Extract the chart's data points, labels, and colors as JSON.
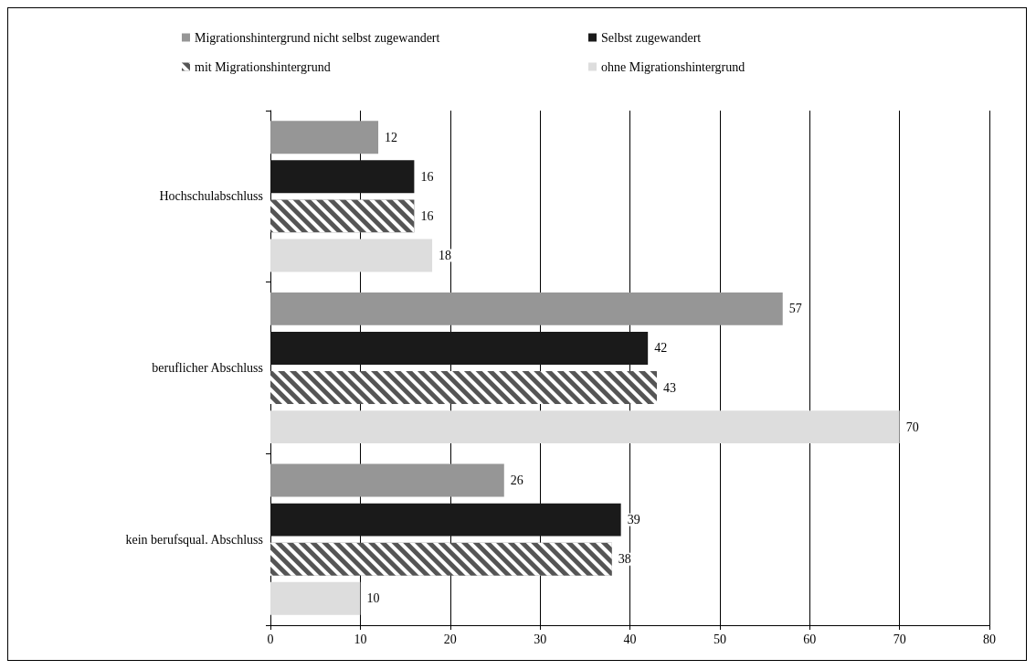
{
  "chart_data": {
    "type": "bar",
    "orientation": "horizontal",
    "categories": [
      "Hochschulabschluss",
      "beruflicher Abschluss",
      "kein berufsqual. Abschluss"
    ],
    "series": [
      {
        "name": "Migrationshintergrund nicht selbst zugewandert",
        "color": "#969696",
        "values": [
          12,
          57,
          26
        ]
      },
      {
        "name": "Selbst zugewandert",
        "color": "#1a1a1a",
        "values": [
          16,
          42,
          39
        ]
      },
      {
        "name": "mit Migrationshintergrund",
        "color": "#555555",
        "values": [
          16,
          43,
          38
        ]
      },
      {
        "name": "ohne Migrationshintergrund",
        "color": "#dddddd",
        "values": [
          18,
          70,
          10
        ]
      }
    ],
    "xlim": [
      0,
      80
    ],
    "xticks": [
      0,
      10,
      20,
      30,
      40,
      50,
      60,
      70,
      80
    ],
    "grid": "x",
    "legend": "top",
    "data_labels": true
  }
}
